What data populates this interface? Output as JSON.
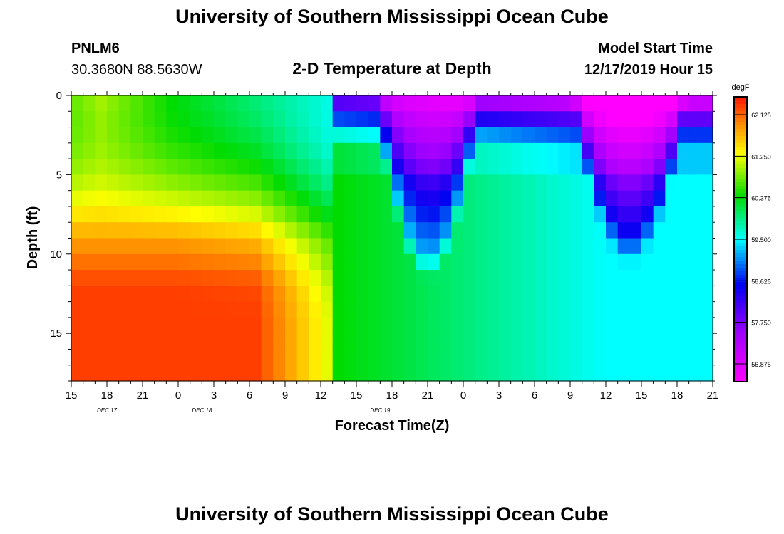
{
  "header": {
    "title": "University of Southern Mississippi Ocean Cube",
    "station_id": "PNLM6",
    "coordinates": "30.3680N 88.5630W",
    "subtitle": "2-D Temperature at Depth",
    "model_start_label": "Model Start Time",
    "model_start_value": "12/17/2019 Hour 15"
  },
  "footer": {
    "title": "University of Southern Mississippi Ocean Cube"
  },
  "chart_data": {
    "type": "heatmap",
    "title": "2-D Temperature at Depth",
    "xlabel": "Forecast Time(Z)",
    "ylabel": "Depth (ft)",
    "x_tick_labels": [
      "15",
      "18",
      "21",
      "0",
      "3",
      "6",
      "9",
      "12",
      "15",
      "18",
      "21",
      "0",
      "3",
      "6",
      "9",
      "12",
      "15",
      "18",
      "21"
    ],
    "date_labels": [
      {
        "text": "DEC 17",
        "at_tick": 3
      },
      {
        "text": "DEC 18",
        "at_tick": 11
      },
      {
        "text": "DEC 19",
        "at_tick": 26
      }
    ],
    "x_range_hours": [
      0,
      54
    ],
    "y_ticks": [
      0,
      5,
      10,
      15
    ],
    "y_range_ft": [
      0,
      18
    ],
    "colorbar": {
      "unit": "degF",
      "min": 56.5,
      "max": 62.5,
      "tick_values": [
        62.125,
        61.25,
        60.375,
        59.5,
        58.625,
        57.75,
        56.875
      ],
      "tick_labels": [
        "62.125",
        "61.250",
        "60.375",
        "59.500",
        "58.625",
        "57.750",
        "56.875"
      ]
    },
    "temperature_degF_by_column": {
      "note": "rows are 18 depth levels (0-18 ft), columns are hourly forecast steps 0-54 starting DEC 17 15Z",
      "n_depth_levels": 18,
      "n_time_steps": 54
    }
  }
}
